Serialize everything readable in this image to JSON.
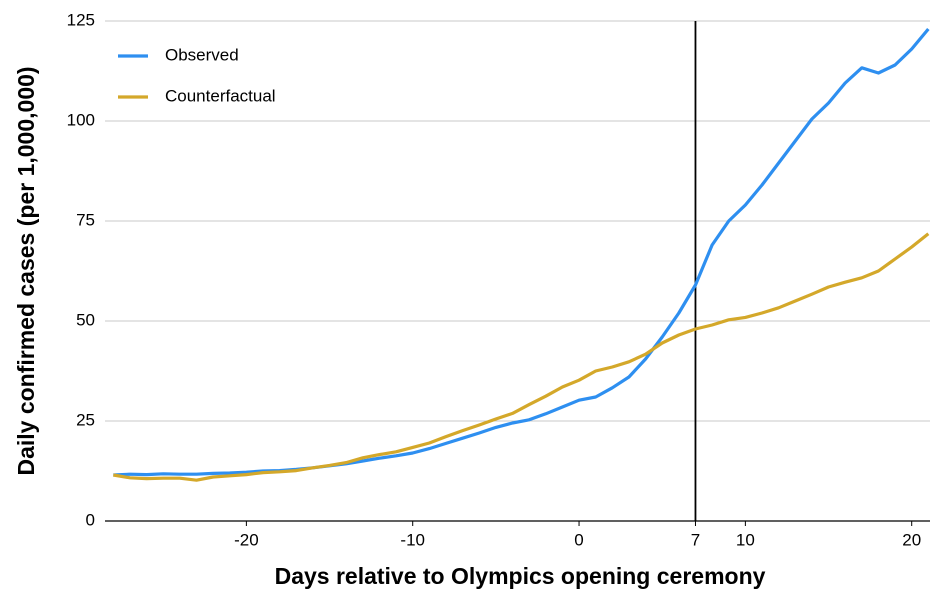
{
  "chart_data": {
    "type": "line",
    "xlabel": "Days relative to Olympics opening ceremony",
    "ylabel": "Daily confirmed cases (per 1,000,000)",
    "x": [
      -28,
      -27,
      -26,
      -25,
      -24,
      -23,
      -22,
      -21,
      -20,
      -19,
      -18,
      -17,
      -16,
      -15,
      -14,
      -13,
      -12,
      -11,
      -10,
      -9,
      -8,
      -7,
      -6,
      -5,
      -4,
      -3,
      -2,
      -1,
      0,
      1,
      2,
      3,
      4,
      5,
      6,
      7,
      8,
      9,
      10,
      11,
      12,
      13,
      14,
      15,
      16,
      17,
      18,
      19,
      20,
      21
    ],
    "series": [
      {
        "name": "Observed",
        "color": "#2e8ff0",
        "values": [
          11.5,
          11.7,
          11.6,
          11.8,
          11.7,
          11.7,
          11.9,
          12.0,
          12.2,
          12.5,
          12.6,
          12.9,
          13.3,
          13.8,
          14.3,
          15.0,
          15.7,
          16.3,
          17.0,
          18.1,
          19.4,
          20.7,
          22.0,
          23.4,
          24.5,
          25.3,
          26.8,
          28.5,
          30.2,
          31.0,
          33.3,
          36.0,
          40.5,
          46.0,
          52.0,
          59.0,
          69.0,
          75.0,
          79.0,
          84.0,
          89.5,
          95.0,
          100.5,
          104.5,
          109.5,
          113.3,
          112.0,
          114.0,
          118.0,
          123.0
        ]
      },
      {
        "name": "Counterfactual",
        "color": "#d4a82a",
        "values": [
          11.5,
          10.8,
          10.6,
          10.7,
          10.7,
          10.2,
          11.0,
          11.3,
          11.6,
          12.1,
          12.3,
          12.6,
          13.3,
          13.9,
          14.6,
          15.8,
          16.6,
          17.3,
          18.4,
          19.5,
          21.1,
          22.6,
          24.0,
          25.5,
          26.9,
          29.1,
          31.2,
          33.5,
          35.2,
          37.5,
          38.5,
          39.8,
          41.7,
          44.5,
          46.5,
          48.0,
          49.0,
          50.3,
          50.9,
          52.0,
          53.3,
          55.0,
          56.7,
          58.5,
          59.7,
          60.8,
          62.5,
          65.5,
          68.5,
          71.8
        ]
      }
    ],
    "xlim": [
      -28.5,
      21.1
    ],
    "xticks": [
      -20,
      -10,
      0,
      7,
      10,
      20
    ],
    "ylim": [
      0,
      125
    ],
    "yticks": [
      0,
      25,
      50,
      75,
      100,
      125
    ],
    "vline": 7,
    "grid": true,
    "legend": "upper left"
  }
}
